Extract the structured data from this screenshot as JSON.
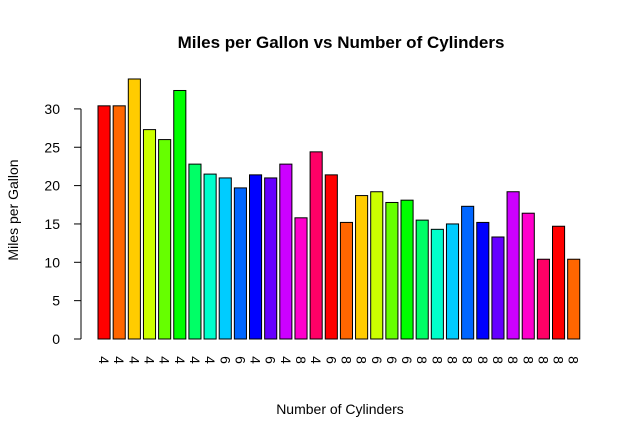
{
  "chart_data": {
    "type": "bar",
    "title": "Miles per Gallon vs Number of Cylinders",
    "xlabel": "Number of Cylinders",
    "ylabel": "Miles per Gallon",
    "ylim": [
      0,
      35
    ],
    "yticks": [
      0,
      5,
      10,
      15,
      20,
      25,
      30
    ],
    "grid": false,
    "legend": "none",
    "categories": [
      "4",
      "4",
      "4",
      "4",
      "4",
      "4",
      "4",
      "4",
      "6",
      "6",
      "4",
      "6",
      "4",
      "8",
      "4",
      "6",
      "8",
      "8",
      "6",
      "6",
      "6",
      "8",
      "8",
      "8",
      "8",
      "8",
      "8",
      "8",
      "8",
      "8",
      "8",
      "8"
    ],
    "values": [
      30.4,
      30.4,
      33.9,
      27.3,
      26.0,
      32.4,
      22.8,
      21.5,
      21.0,
      19.7,
      21.4,
      21.0,
      22.8,
      15.8,
      24.4,
      21.4,
      15.2,
      18.7,
      19.2,
      17.8,
      18.1,
      15.5,
      14.3,
      15.0,
      17.3,
      15.2,
      13.3,
      19.2,
      16.4,
      10.4,
      14.7,
      10.4
    ],
    "colors": [
      "#FF0000",
      "#FF6600",
      "#FFCC00",
      "#CCFF00",
      "#66FF00",
      "#00FF00",
      "#00FF66",
      "#00FFCC",
      "#00CCFF",
      "#0066FF",
      "#0000FF",
      "#6600FF",
      "#CC00FF",
      "#FF00CC",
      "#FF0066",
      "#FF0000",
      "#FF6600",
      "#FFCC00",
      "#CCFF00",
      "#66FF00",
      "#00FF00",
      "#00FF66",
      "#00FFCC",
      "#00CCFF",
      "#0066FF",
      "#0000FF",
      "#6600FF",
      "#CC00FF",
      "#FF00CC",
      "#FF0066",
      "#FF0000",
      "#FF6600"
    ]
  }
}
